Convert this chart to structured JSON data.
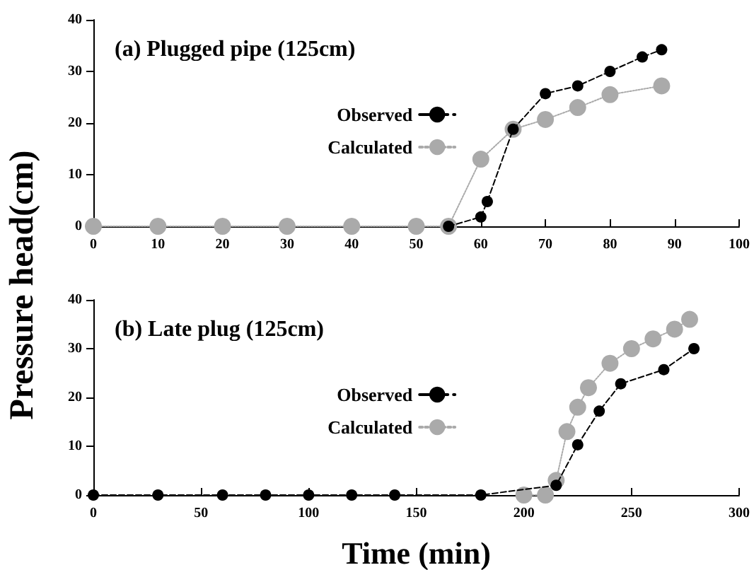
{
  "chart_data": [
    {
      "type": "line",
      "title": "(a) Plugged pipe (125cm)",
      "ylabel": "Pressure head(cm)",
      "xlim": [
        0,
        100
      ],
      "xticks": [
        0,
        10,
        20,
        30,
        40,
        50,
        60,
        70,
        80,
        90,
        100
      ],
      "ylim": [
        0,
        40
      ],
      "yticks": [
        0,
        10,
        20,
        30,
        40
      ],
      "grid": false,
      "legend": "bottom left",
      "series": [
        {
          "name": "Observed",
          "color": "#000000",
          "marker": "circle",
          "line_style": "dashed",
          "x": [
            55,
            60,
            61,
            65,
            70,
            75,
            80,
            85,
            88
          ],
          "values": [
            0,
            1.8,
            4.8,
            18.8,
            25.7,
            27.2,
            30,
            32.8,
            34.2
          ]
        },
        {
          "name": "Calculated",
          "color": "#aaaaaa",
          "marker": "circle",
          "line_style": "dotted",
          "x": [
            0,
            10,
            20,
            30,
            40,
            50,
            55,
            60,
            65,
            70,
            75,
            80,
            88
          ],
          "values": [
            0,
            0,
            0,
            0,
            0,
            0,
            0,
            13,
            18.8,
            20.7,
            23,
            25.5,
            27.2
          ]
        }
      ]
    },
    {
      "type": "line",
      "title": "(b) Late plug (125cm)",
      "xlabel": "Time (min)",
      "xlim": [
        0,
        300
      ],
      "xticks": [
        0,
        50,
        100,
        150,
        200,
        250,
        300
      ],
      "ylim": [
        0,
        40
      ],
      "yticks": [
        0,
        10,
        20,
        30,
        40
      ],
      "grid": false,
      "legend": "bottom left",
      "series": [
        {
          "name": "Observed",
          "color": "#000000",
          "marker": "circle",
          "line_style": "dashed",
          "x": [
            0,
            30,
            60,
            80,
            100,
            120,
            140,
            180,
            215,
            225,
            235,
            245,
            265,
            279
          ],
          "values": [
            0,
            0,
            0,
            0,
            0,
            0,
            0,
            0,
            2,
            10.3,
            17.2,
            22.8,
            25.7,
            30
          ]
        },
        {
          "name": "Calculated",
          "color": "#aaaaaa",
          "marker": "circle",
          "line_style": "dotted",
          "x": [
            200,
            210,
            215,
            220,
            225,
            230,
            240,
            250,
            260,
            270,
            277
          ],
          "values": [
            0,
            0,
            3,
            13,
            18,
            22,
            27,
            30,
            32,
            34,
            36
          ]
        }
      ]
    }
  ]
}
